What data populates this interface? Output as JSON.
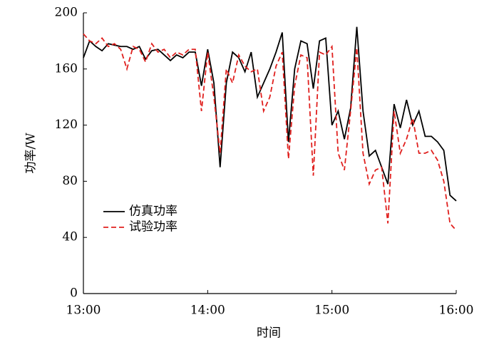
{
  "chart_data": {
    "type": "line",
    "xlabel": "时间",
    "ylabel": "功率/W",
    "x": [
      13,
      13.05,
      13.1,
      13.15,
      13.2,
      13.25,
      13.3,
      13.35,
      13.4,
      13.45,
      13.5,
      13.55,
      13.6,
      13.65,
      13.7,
      13.75,
      13.8,
      13.85,
      13.9,
      13.95,
      14,
      14.05,
      14.1,
      14.15,
      14.2,
      14.25,
      14.3,
      14.35,
      14.4,
      14.45,
      14.5,
      14.55,
      14.6,
      14.65,
      14.7,
      14.75,
      14.8,
      14.85,
      14.9,
      14.95,
      15,
      15.05,
      15.1,
      15.15,
      15.2,
      15.25,
      15.3,
      15.35,
      15.4,
      15.45,
      15.5,
      15.55,
      15.6,
      15.65,
      15.7,
      15.75,
      15.8,
      15.85,
      15.9,
      15.95,
      16
    ],
    "series": [
      {
        "name": "仿真功率",
        "color": "#000000",
        "dash": false,
        "values": [
          168,
          180,
          176,
          173,
          178,
          177,
          176,
          176,
          174,
          176,
          167,
          173,
          174,
          170,
          166,
          170,
          168,
          172,
          172,
          148,
          174,
          150,
          90,
          150,
          172,
          168,
          158,
          172,
          140,
          150,
          160,
          172,
          186,
          108,
          160,
          180,
          178,
          146,
          180,
          182,
          120,
          130,
          110,
          132,
          190,
          130,
          98,
          102,
          90,
          78,
          135,
          118,
          138,
          120,
          130,
          112,
          112,
          108,
          102,
          70,
          66
        ]
      },
      {
        "name": "试验功率",
        "color": "#e0201e",
        "dash": true,
        "values": [
          185,
          180,
          178,
          182,
          176,
          178,
          174,
          160,
          176,
          174,
          165,
          178,
          172,
          174,
          168,
          172,
          170,
          174,
          174,
          130,
          172,
          140,
          100,
          160,
          150,
          170,
          162,
          158,
          160,
          130,
          140,
          162,
          172,
          96,
          148,
          170,
          168,
          84,
          172,
          170,
          176,
          100,
          88,
          130,
          175,
          100,
          78,
          88,
          90,
          50,
          130,
          100,
          110,
          125,
          100,
          100,
          102,
          95,
          80,
          50,
          45
        ]
      }
    ],
    "xlim": [
      13,
      16
    ],
    "xticks": [
      {
        "value": 13,
        "label": "13:00"
      },
      {
        "value": 14,
        "label": "14:00"
      },
      {
        "value": 15,
        "label": "15:00"
      },
      {
        "value": 16,
        "label": "16:00"
      }
    ],
    "ylim": [
      0,
      200
    ],
    "yticks": [
      0,
      40,
      80,
      120,
      160,
      200
    ],
    "legend": "lower left"
  }
}
